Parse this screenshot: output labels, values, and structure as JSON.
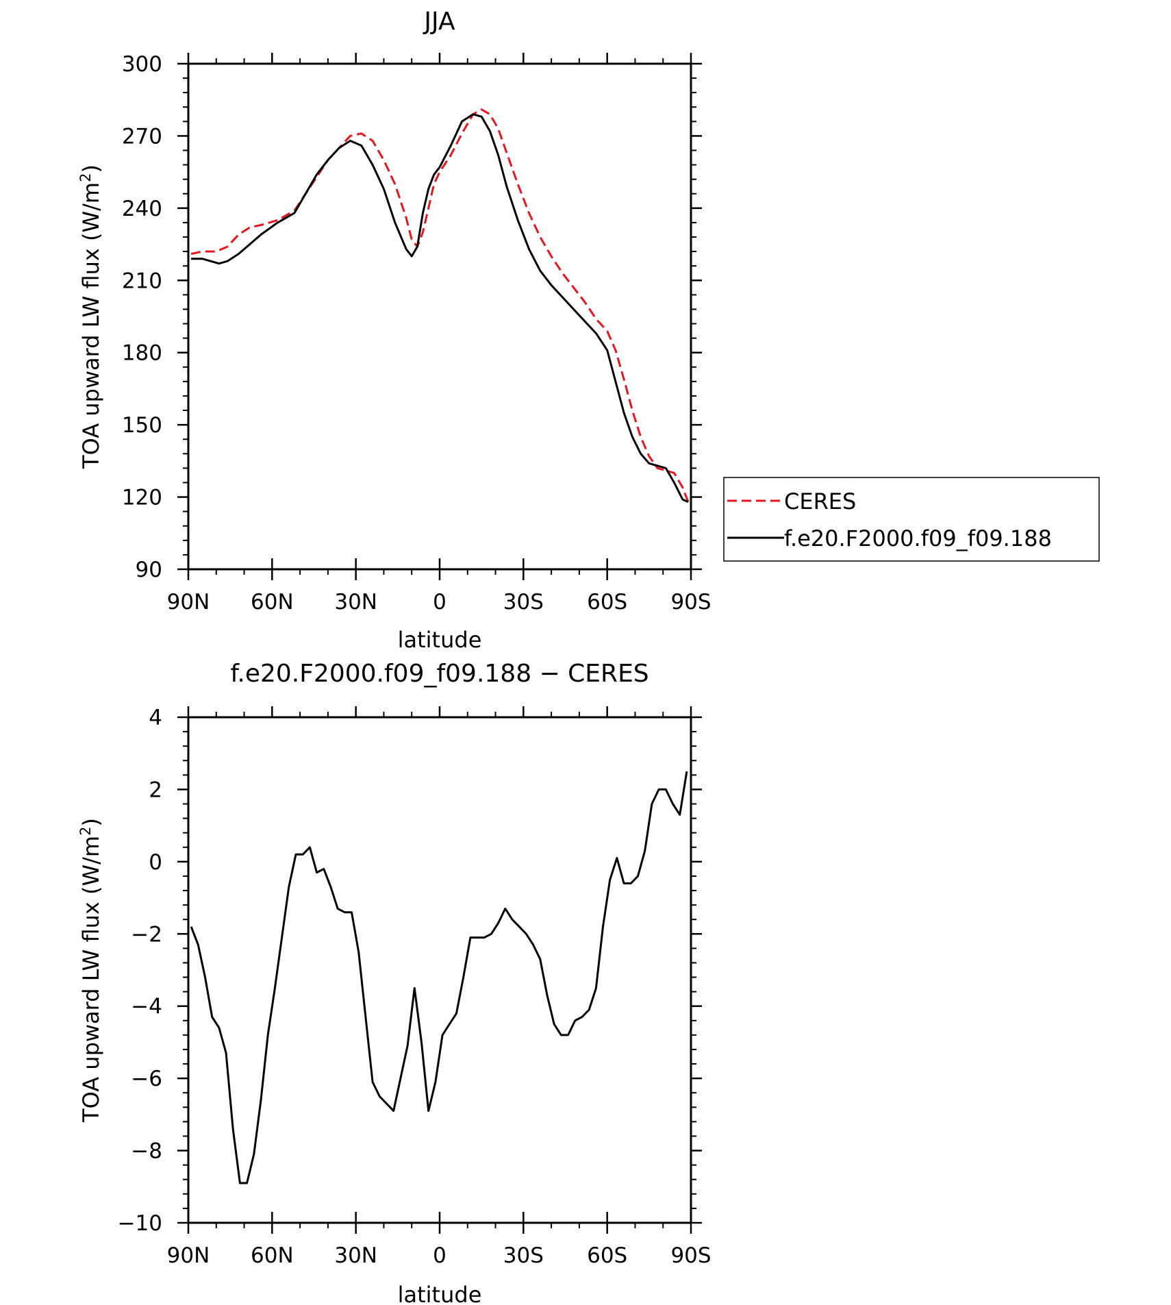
{
  "chart_data": [
    {
      "type": "line",
      "title": "JJA",
      "xlabel": "latitude",
      "ylabel": "TOA upward LW flux (W/m²)",
      "ylabel_main": "TOA upward LW flux (W/m",
      "ylabel_sup": "2",
      "ylabel_end": ")",
      "xlim": [
        90,
        -90
      ],
      "ylim": [
        90,
        300
      ],
      "xticks": [
        {
          "value": 90,
          "label": "90N"
        },
        {
          "value": 60,
          "label": "60N"
        },
        {
          "value": 30,
          "label": "30N"
        },
        {
          "value": 0,
          "label": "0"
        },
        {
          "value": -30,
          "label": "30S"
        },
        {
          "value": -60,
          "label": "60S"
        },
        {
          "value": -90,
          "label": "90S"
        }
      ],
      "yticks": [
        {
          "value": 90,
          "label": "90"
        },
        {
          "value": 120,
          "label": "120"
        },
        {
          "value": 150,
          "label": "150"
        },
        {
          "value": 180,
          "label": "180"
        },
        {
          "value": 210,
          "label": "210"
        },
        {
          "value": 240,
          "label": "240"
        },
        {
          "value": 270,
          "label": "270"
        },
        {
          "value": 300,
          "label": "300"
        }
      ],
      "legend": "right",
      "series": [
        {
          "name": "CERES",
          "color": "#e8141e",
          "dash": "dashed",
          "x": [
            89,
            85,
            80,
            76,
            72,
            68,
            64,
            58,
            52,
            48,
            44,
            40,
            36,
            32,
            28,
            24,
            20,
            16,
            12,
            10,
            8,
            6,
            4,
            2,
            0,
            -4,
            -8,
            -12,
            -15,
            -18,
            -21,
            -24,
            -28,
            -32,
            -36,
            -40,
            -44,
            -48,
            -52,
            -56,
            -60,
            -63,
            -66,
            -69,
            -72,
            -75,
            -78,
            -81,
            -84,
            -87,
            -89
          ],
          "y": [
            221,
            222,
            222,
            224,
            229,
            232,
            233,
            235,
            239,
            246,
            253,
            260,
            265,
            270,
            271,
            268,
            260,
            250,
            236,
            227,
            224,
            230,
            240,
            250,
            255,
            262,
            271,
            279,
            281,
            279,
            273,
            263,
            250,
            238,
            228,
            220,
            213,
            207,
            201,
            194,
            189,
            181,
            169,
            156,
            145,
            137,
            132,
            131,
            130,
            124,
            118
          ]
        },
        {
          "name": "f.e20.F2000.f09_f09.188",
          "color": "#000000",
          "dash": "solid",
          "x": [
            89,
            85,
            82,
            79,
            76,
            72,
            68,
            64,
            58,
            52,
            48,
            44,
            40,
            36,
            32,
            28,
            24,
            20,
            16,
            12,
            10,
            8,
            6,
            4,
            2,
            0,
            -4,
            -8,
            -12,
            -15,
            -18,
            -21,
            -24,
            -28,
            -32,
            -36,
            -40,
            -44,
            -48,
            -52,
            -56,
            -60,
            -63,
            -66,
            -69,
            -72,
            -75,
            -78,
            -81,
            -84,
            -87,
            -89
          ],
          "y": [
            219,
            219,
            218,
            217,
            218,
            221,
            225,
            229,
            234,
            238,
            246,
            254,
            260,
            265,
            268,
            266,
            258,
            248,
            234,
            223,
            220,
            224,
            238,
            248,
            254,
            257,
            266,
            276,
            279,
            278,
            272,
            262,
            249,
            235,
            223,
            214,
            208,
            203,
            198,
            193,
            188,
            181,
            168,
            155,
            145,
            138,
            134,
            133,
            132,
            126,
            119,
            118
          ]
        }
      ]
    },
    {
      "type": "line",
      "title": "f.e20.F2000.f09_f09.188 − CERES",
      "xlabel": "latitude",
      "ylabel": "TOA upward LW flux (W/m²)",
      "ylabel_main": "TOA upward LW flux (W/m",
      "ylabel_sup": "2",
      "ylabel_end": ")",
      "xlim": [
        90,
        -90
      ],
      "ylim": [
        -10,
        4
      ],
      "xticks": [
        {
          "value": 90,
          "label": "90N"
        },
        {
          "value": 60,
          "label": "60N"
        },
        {
          "value": 30,
          "label": "30N"
        },
        {
          "value": 0,
          "label": "0"
        },
        {
          "value": -30,
          "label": "30S"
        },
        {
          "value": -60,
          "label": "60S"
        },
        {
          "value": -90,
          "label": "90S"
        }
      ],
      "yticks": [
        {
          "value": -10,
          "label": "−10"
        },
        {
          "value": -8,
          "label": "−8"
        },
        {
          "value": -6,
          "label": "−6"
        },
        {
          "value": -4,
          "label": "−4"
        },
        {
          "value": -2,
          "label": "−2"
        },
        {
          "value": 0,
          "label": "0"
        },
        {
          "value": 2,
          "label": "2"
        },
        {
          "value": 4,
          "label": "4"
        }
      ],
      "series": [
        {
          "color": "#000000",
          "dash": "solid",
          "x": [
            89,
            86.5,
            84,
            81.5,
            79,
            76.5,
            74,
            71.5,
            69,
            66.5,
            64,
            61.5,
            59,
            56.5,
            54,
            51.5,
            49,
            46.5,
            44,
            41.5,
            39,
            36.5,
            34,
            31.5,
            29,
            26.5,
            24,
            21.5,
            19,
            16.5,
            14,
            11.5,
            9,
            6.5,
            4,
            1.5,
            -1,
            -3.5,
            -6,
            -8.5,
            -11,
            -13.5,
            -16,
            -18.5,
            -21,
            -23.5,
            -26,
            -28.5,
            -31,
            -33.5,
            -36,
            -38.5,
            -41,
            -43.5,
            -46,
            -48.5,
            -51,
            -53.5,
            -56,
            -58.5,
            -61,
            -63.5,
            -66,
            -68.5,
            -71,
            -73.5,
            -76,
            -78.5,
            -81,
            -83.5,
            -86,
            -88.5
          ],
          "y": [
            -1.8,
            -2.3,
            -3.2,
            -4.3,
            -4.6,
            -5.3,
            -7.4,
            -8.9,
            -8.9,
            -8.1,
            -6.6,
            -4.8,
            -3.5,
            -2.1,
            -0.7,
            0.2,
            0.2,
            0.4,
            -0.3,
            -0.2,
            -0.7,
            -1.3,
            -1.4,
            -1.4,
            -2.5,
            -4.3,
            -6.1,
            -6.5,
            -6.7,
            -6.9,
            -6.0,
            -5.1,
            -3.5,
            -5.0,
            -6.9,
            -6.1,
            -4.8,
            -4.5,
            -4.2,
            -3.2,
            -2.1,
            -2.1,
            -2.1,
            -2.0,
            -1.7,
            -1.3,
            -1.6,
            -1.8,
            -2.0,
            -2.3,
            -2.7,
            -3.7,
            -4.5,
            -4.8,
            -4.8,
            -4.4,
            -4.3,
            -4.1,
            -3.5,
            -1.8,
            -0.5,
            0.1,
            -0.6,
            -0.6,
            -0.4,
            0.3,
            1.6,
            2.0,
            2.0,
            1.6,
            1.3,
            2.5
          ]
        }
      ]
    }
  ]
}
